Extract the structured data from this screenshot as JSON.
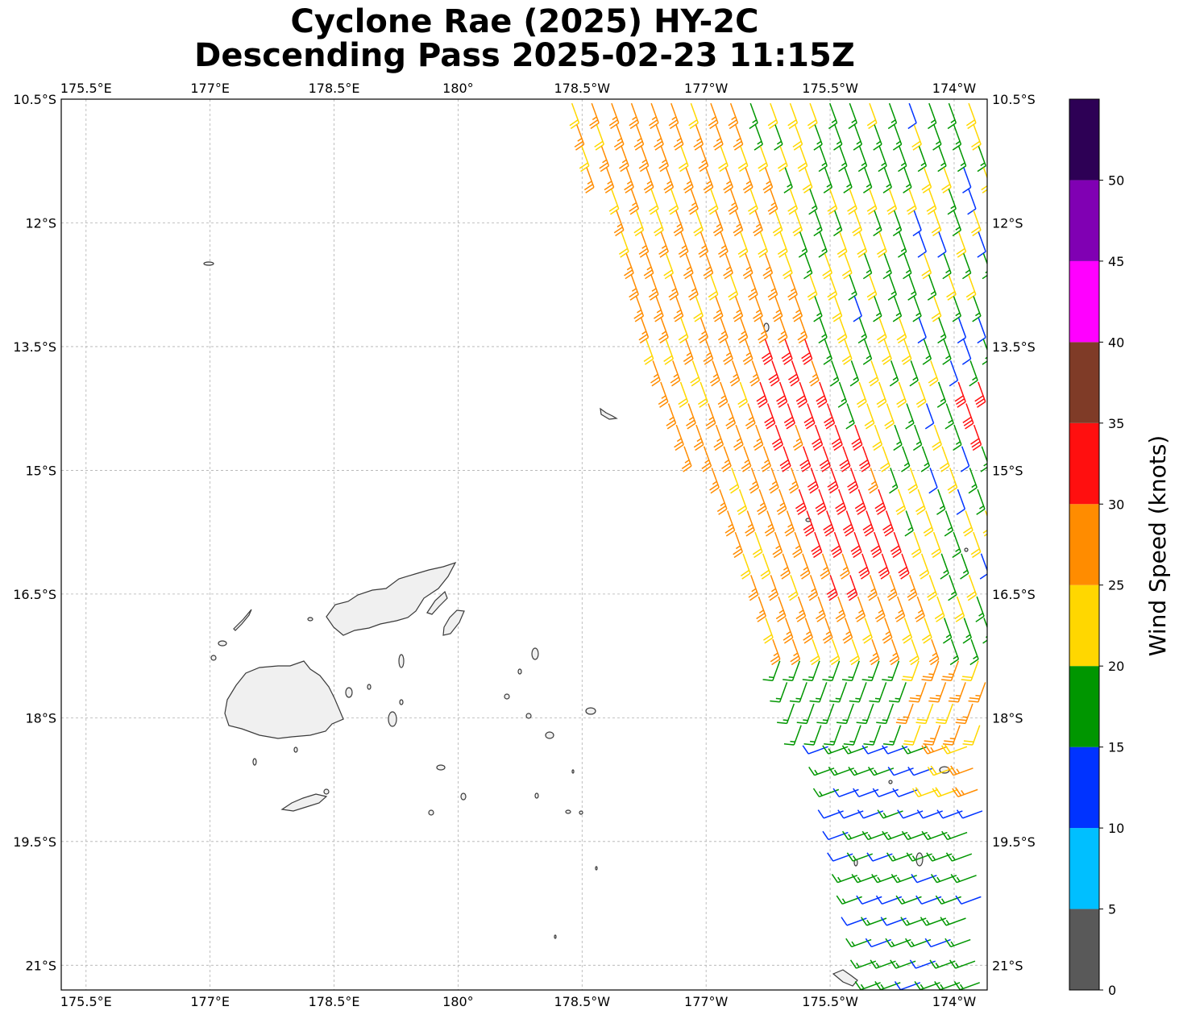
{
  "title": {
    "line1": "Cyclone Rae (2025) HY-2C",
    "line2": "Descending Pass 2025-02-23 11:15Z"
  },
  "axes": {
    "lon_ticks": [
      "175.5°E",
      "177°E",
      "178.5°E",
      "180°",
      "178.5°W",
      "177°W",
      "175.5°W",
      "174°W"
    ],
    "lat_ticks": [
      "10.5°S",
      "12°S",
      "13.5°S",
      "15°S",
      "16.5°S",
      "18°S",
      "19.5°S",
      "21°S"
    ],
    "extent": {
      "lon_min": 175.2,
      "lon_max": 186.4,
      "lat_max": -10.5,
      "lat_min": -21.3
    }
  },
  "colorbar": {
    "label": "Wind Speed (knots)",
    "tick_labels": [
      "0",
      "5",
      "10",
      "15",
      "20",
      "25",
      "30",
      "35",
      "40",
      "45",
      "50"
    ],
    "bins": [
      {
        "min": 0,
        "max": 5,
        "color": "#595959"
      },
      {
        "min": 5,
        "max": 10,
        "color": "#00bfff"
      },
      {
        "min": 10,
        "max": 15,
        "color": "#0033ff"
      },
      {
        "min": 15,
        "max": 20,
        "color": "#009600"
      },
      {
        "min": 20,
        "max": 25,
        "color": "#ffd700"
      },
      {
        "min": 25,
        "max": 30,
        "color": "#ff8c00"
      },
      {
        "min": 30,
        "max": 35,
        "color": "#ff0f0f"
      },
      {
        "min": 35,
        "max": 40,
        "color": "#7f3b27"
      },
      {
        "min": 40,
        "max": 45,
        "color": "#ff00ff"
      },
      {
        "min": 45,
        "max": 50,
        "color": "#8000b3"
      },
      {
        "min": 50,
        "max": 55,
        "color": "#2d0055"
      }
    ]
  },
  "wind_field": {
    "description_free": true,
    "swath_west_edge_lon": [
      [
        -10.5,
        181.3
      ],
      [
        -13.5,
        182.2
      ],
      [
        -16.5,
        183.5
      ],
      [
        -18.5,
        184.3
      ],
      [
        -21.3,
        185.1
      ]
    ],
    "zones": [
      {
        "name": "northern_moderate",
        "speed_range_kt": [
          15,
          25
        ]
      },
      {
        "name": "core_band",
        "speed_range_kt": [
          25,
          35
        ]
      },
      {
        "name": "southern_light",
        "speed_range_kt": [
          10,
          20
        ]
      }
    ]
  },
  "colors": {
    "coastline": "#3a3a3a",
    "land_fill": "#f0f0f0",
    "grid": "#b0b0b0"
  }
}
